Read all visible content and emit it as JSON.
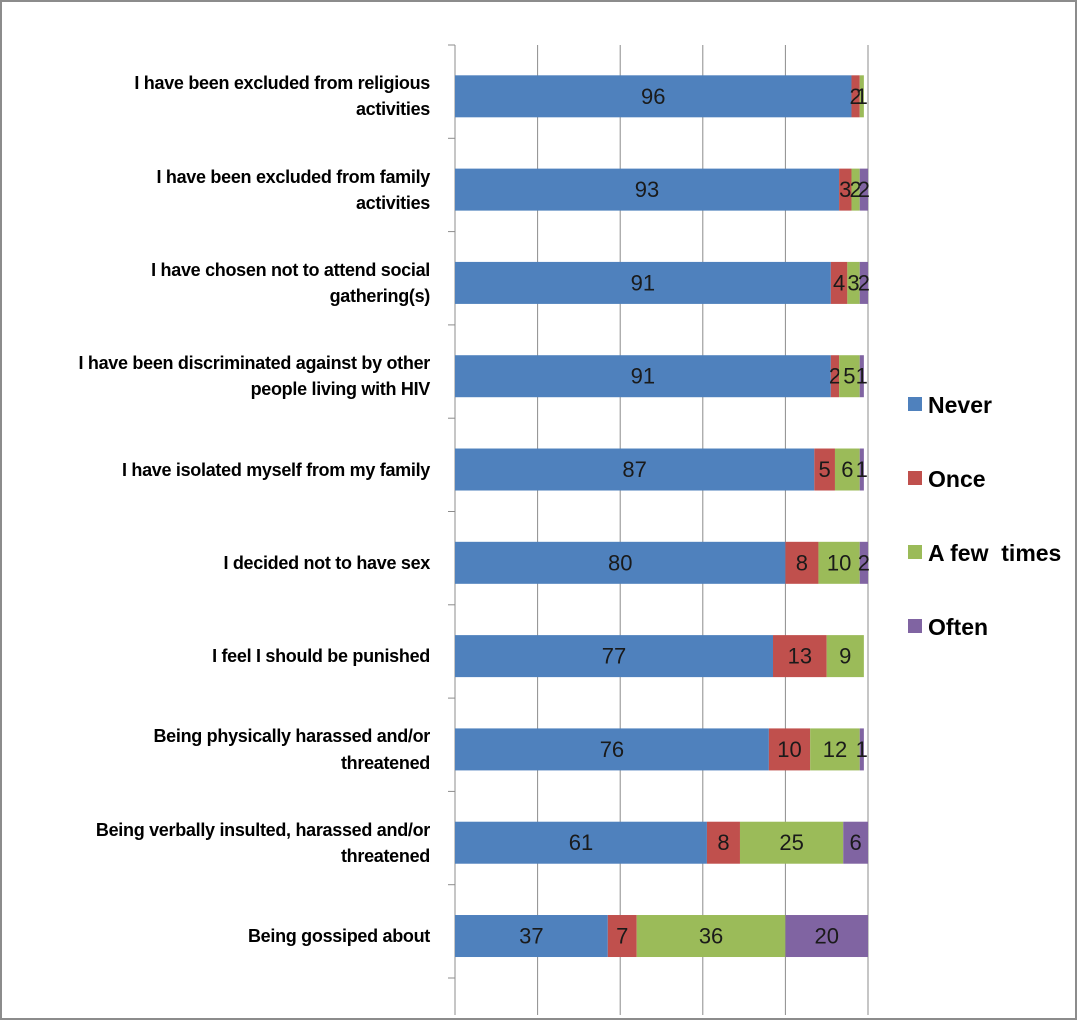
{
  "chart_data": {
    "type": "stacked_barh",
    "categories": [
      "I have been excluded from religious\nactivities",
      "I have been excluded from family\nactivities",
      "I have chosen not to attend social\ngathering(s)",
      "I have been discriminated against by other\npeople living  with  HIV",
      "I have isolated myself  from my family",
      "I decided not to have sex",
      "I feel  I should be  punished",
      "Being  physically harassed and/or\nthreatened",
      "Being  verbally insulted, harassed and/or\nthreatened",
      "Being  gossiped about"
    ],
    "series": [
      {
        "name": "Never",
        "color": "#4f81bd",
        "values": [
          96,
          93,
          91,
          91,
          87,
          80,
          77,
          76,
          61,
          37
        ]
      },
      {
        "name": "Once",
        "color": "#c0504d",
        "values": [
          2,
          3,
          4,
          2,
          5,
          8,
          13,
          10,
          8,
          7
        ]
      },
      {
        "name": "A few  times",
        "color": "#9bbb59",
        "values": [
          1,
          2,
          3,
          5,
          6,
          10,
          9,
          12,
          25,
          36
        ]
      },
      {
        "name": "Often",
        "color": "#8064a2",
        "values": [
          null,
          2,
          2,
          1,
          1,
          2,
          null,
          1,
          6,
          20
        ]
      }
    ],
    "xlim": [
      0,
      100
    ],
    "xticks": [
      0,
      20,
      40,
      60,
      80,
      100
    ],
    "grid": true,
    "legend": "right"
  }
}
